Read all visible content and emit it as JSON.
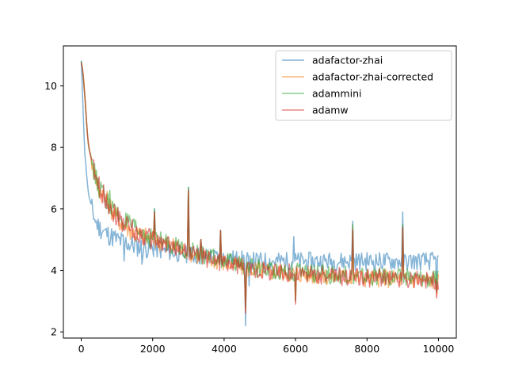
{
  "chart_data": {
    "type": "line",
    "title": "",
    "xlabel": "",
    "ylabel": "",
    "xlim": [
      -500,
      10500
    ],
    "ylim": [
      1.8,
      11.3
    ],
    "xticks": [
      0,
      2000,
      4000,
      6000,
      8000,
      10000
    ],
    "yticks": [
      2,
      4,
      6,
      8,
      10
    ],
    "xtick_labels": [
      "0",
      "2000",
      "4000",
      "6000",
      "8000",
      "10000"
    ],
    "ytick_labels": [
      "2",
      "4",
      "6",
      "8",
      "10"
    ],
    "grid": false,
    "legend_position": "top-right",
    "series": [
      {
        "name": "adafactor-zhai",
        "color": "#1f77b4",
        "points": [
          [
            0,
            10.8
          ],
          [
            50,
            9.3
          ],
          [
            100,
            7.8
          ],
          [
            200,
            6.5
          ],
          [
            300,
            6.0
          ],
          [
            400,
            5.6
          ],
          [
            500,
            5.4
          ],
          [
            700,
            5.2
          ],
          [
            1000,
            5.0
          ],
          [
            1500,
            4.8
          ],
          [
            2000,
            4.7
          ],
          [
            2500,
            4.6
          ],
          [
            3000,
            4.5
          ],
          [
            3500,
            4.45
          ],
          [
            4000,
            4.4
          ],
          [
            4500,
            4.35
          ],
          [
            5000,
            4.3
          ],
          [
            5500,
            4.3
          ],
          [
            6000,
            4.3
          ],
          [
            6500,
            4.3
          ],
          [
            7000,
            4.3
          ],
          [
            7500,
            4.3
          ],
          [
            8000,
            4.3
          ],
          [
            8500,
            4.3
          ],
          [
            9000,
            4.3
          ],
          [
            9500,
            4.3
          ],
          [
            10000,
            4.3
          ]
        ],
        "spikes": [
          [
            1200,
            4.3
          ],
          [
            1700,
            4.2
          ],
          [
            2050,
            6.0
          ],
          [
            3000,
            6.7
          ],
          [
            3350,
            5.0
          ],
          [
            3900,
            5.3
          ],
          [
            4600,
            2.2
          ],
          [
            4700,
            3.5
          ],
          [
            5950,
            5.1
          ],
          [
            7600,
            5.6
          ],
          [
            9000,
            5.9
          ],
          [
            9950,
            3.4
          ]
        ]
      },
      {
        "name": "adafactor-zhai-corrected",
        "color": "#ff7f0e",
        "points": [
          [
            0,
            10.8
          ],
          [
            50,
            10.4
          ],
          [
            100,
            9.7
          ],
          [
            150,
            8.8
          ],
          [
            200,
            8.1
          ],
          [
            300,
            7.5
          ],
          [
            400,
            7.0
          ],
          [
            500,
            6.7
          ],
          [
            700,
            6.3
          ],
          [
            1000,
            5.7
          ],
          [
            1500,
            5.2
          ],
          [
            2000,
            5.0
          ],
          [
            2500,
            4.8
          ],
          [
            3000,
            4.6
          ],
          [
            3500,
            4.4
          ],
          [
            4000,
            4.25
          ],
          [
            4500,
            4.1
          ],
          [
            5000,
            4.0
          ],
          [
            5500,
            3.95
          ],
          [
            6000,
            3.9
          ],
          [
            6500,
            3.85
          ],
          [
            7000,
            3.8
          ],
          [
            7500,
            3.8
          ],
          [
            8000,
            3.75
          ],
          [
            8500,
            3.75
          ],
          [
            9000,
            3.7
          ],
          [
            9500,
            3.7
          ],
          [
            10000,
            3.65
          ]
        ],
        "spikes": [
          [
            2050,
            5.9
          ],
          [
            3000,
            6.6
          ],
          [
            3350,
            5.0
          ],
          [
            3900,
            5.3
          ],
          [
            4600,
            2.7
          ],
          [
            6000,
            3.0
          ],
          [
            7600,
            5.4
          ],
          [
            9000,
            5.4
          ],
          [
            9950,
            3.2
          ]
        ]
      },
      {
        "name": "adammini",
        "color": "#2ca02c",
        "points": [
          [
            0,
            10.8
          ],
          [
            50,
            10.4
          ],
          [
            100,
            9.7
          ],
          [
            150,
            8.8
          ],
          [
            200,
            8.1
          ],
          [
            300,
            7.5
          ],
          [
            400,
            7.0
          ],
          [
            500,
            6.7
          ],
          [
            700,
            6.3
          ],
          [
            1000,
            5.8
          ],
          [
            1500,
            5.3
          ],
          [
            2000,
            5.05
          ],
          [
            2500,
            4.85
          ],
          [
            3000,
            4.65
          ],
          [
            3500,
            4.45
          ],
          [
            4000,
            4.3
          ],
          [
            4500,
            4.15
          ],
          [
            5000,
            4.05
          ],
          [
            5500,
            4.0
          ],
          [
            6000,
            3.95
          ],
          [
            6500,
            3.9
          ],
          [
            7000,
            3.85
          ],
          [
            7500,
            3.85
          ],
          [
            8000,
            3.8
          ],
          [
            8500,
            3.8
          ],
          [
            9000,
            3.75
          ],
          [
            9500,
            3.75
          ],
          [
            10000,
            3.7
          ]
        ],
        "spikes": [
          [
            800,
            6.6
          ],
          [
            2050,
            6.0
          ],
          [
            3000,
            6.7
          ],
          [
            3350,
            5.0
          ],
          [
            3900,
            5.3
          ],
          [
            4600,
            2.8
          ],
          [
            6000,
            3.0
          ],
          [
            7600,
            5.5
          ],
          [
            9000,
            5.5
          ],
          [
            9950,
            3.3
          ]
        ]
      },
      {
        "name": "adamw",
        "color": "#d62728",
        "points": [
          [
            0,
            10.8
          ],
          [
            50,
            10.4
          ],
          [
            100,
            9.7
          ],
          [
            150,
            8.8
          ],
          [
            200,
            8.1
          ],
          [
            300,
            7.5
          ],
          [
            400,
            7.0
          ],
          [
            500,
            6.7
          ],
          [
            700,
            6.3
          ],
          [
            1000,
            5.75
          ],
          [
            1500,
            5.25
          ],
          [
            2000,
            5.0
          ],
          [
            2500,
            4.8
          ],
          [
            3000,
            4.6
          ],
          [
            3500,
            4.4
          ],
          [
            4000,
            4.25
          ],
          [
            4500,
            4.1
          ],
          [
            5000,
            4.0
          ],
          [
            5500,
            3.95
          ],
          [
            6000,
            3.9
          ],
          [
            6500,
            3.85
          ],
          [
            7000,
            3.8
          ],
          [
            7500,
            3.8
          ],
          [
            8000,
            3.75
          ],
          [
            8500,
            3.75
          ],
          [
            9000,
            3.7
          ],
          [
            9500,
            3.7
          ],
          [
            10000,
            3.65
          ]
        ],
        "spikes": [
          [
            2050,
            5.9
          ],
          [
            3000,
            6.6
          ],
          [
            3350,
            5.0
          ],
          [
            3900,
            5.3
          ],
          [
            4600,
            2.6
          ],
          [
            6000,
            2.9
          ],
          [
            7600,
            5.3
          ],
          [
            9000,
            5.4
          ],
          [
            9950,
            3.1
          ]
        ]
      }
    ]
  }
}
